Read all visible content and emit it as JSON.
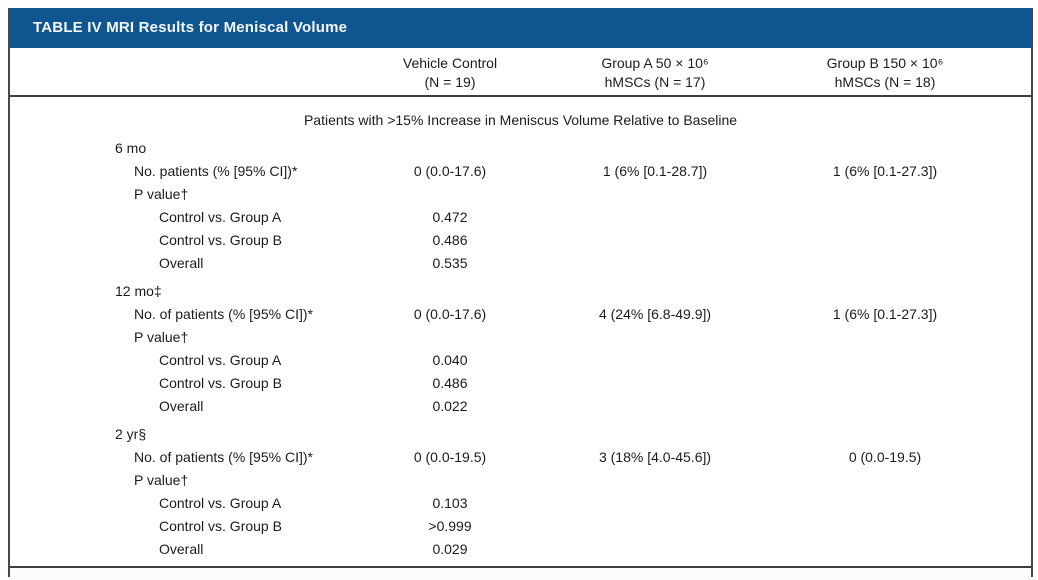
{
  "table": {
    "title": "TABLE IV MRI Results for Meniscal Volume",
    "columns": [
      {
        "line1": "Vehicle Control",
        "line2": "(N = 19)"
      },
      {
        "line1": "Group A 50 × 10⁶",
        "line2": "hMSCs (N = 17)"
      },
      {
        "line1": "Group B 150 × 10⁶",
        "line2": "hMSCs (N = 18)"
      }
    ],
    "section_heading": "Patients with >15% Increase in Meniscus Volume Relative to Baseline",
    "rows": [
      {
        "label": "6 mo",
        "indent": 0,
        "section": true,
        "values": [
          "",
          "",
          ""
        ]
      },
      {
        "label": "No. patients (% [95% CI])*",
        "indent": 1,
        "section": false,
        "values": [
          "0 (0.0-17.6)",
          "1 (6% [0.1-28.7])",
          "1 (6% [0.1-27.3])"
        ]
      },
      {
        "label": "P value†",
        "indent": 1,
        "section": false,
        "values": [
          "",
          "",
          ""
        ]
      },
      {
        "label": "Control vs. Group A",
        "indent": 2,
        "section": false,
        "values": [
          "0.472",
          "",
          ""
        ]
      },
      {
        "label": "Control vs. Group B",
        "indent": 2,
        "section": false,
        "values": [
          "0.486",
          "",
          ""
        ]
      },
      {
        "label": "Overall",
        "indent": 2,
        "section": false,
        "values": [
          "0.535",
          "",
          ""
        ]
      },
      {
        "label": "12 mo‡",
        "indent": 0,
        "section": true,
        "values": [
          "",
          "",
          ""
        ]
      },
      {
        "label": "No. of patients (% [95% CI])*",
        "indent": 1,
        "section": false,
        "values": [
          "0 (0.0-17.6)",
          "4 (24% [6.8-49.9])",
          "1 (6% [0.1-27.3])"
        ]
      },
      {
        "label": "P value†",
        "indent": 1,
        "section": false,
        "values": [
          "",
          "",
          ""
        ]
      },
      {
        "label": "Control vs. Group A",
        "indent": 2,
        "section": false,
        "values": [
          "0.040",
          "",
          ""
        ]
      },
      {
        "label": "Control vs. Group B",
        "indent": 2,
        "section": false,
        "values": [
          "0.486",
          "",
          ""
        ]
      },
      {
        "label": "Overall",
        "indent": 2,
        "section": false,
        "values": [
          "0.022",
          "",
          ""
        ]
      },
      {
        "label": "2 yr§",
        "indent": 0,
        "section": true,
        "values": [
          "",
          "",
          ""
        ]
      },
      {
        "label": "No. of patients (% [95% CI])*",
        "indent": 1,
        "section": false,
        "values": [
          "0 (0.0-19.5)",
          "3 (18% [4.0-45.6])",
          "0 (0.0-19.5)"
        ]
      },
      {
        "label": "P value†",
        "indent": 1,
        "section": false,
        "values": [
          "",
          "",
          ""
        ]
      },
      {
        "label": "Control vs. Group A",
        "indent": 2,
        "section": false,
        "values": [
          "0.103",
          "",
          ""
        ]
      },
      {
        "label": "Control vs. Group B",
        "indent": 2,
        "section": false,
        "values": [
          ">0.999",
          "",
          ""
        ]
      },
      {
        "label": "Overall",
        "indent": 2,
        "section": false,
        "values": [
          "0.029",
          "",
          ""
        ]
      }
    ],
    "colors": {
      "header_bar_blue": "#0f5590",
      "rule_dark": "#3e3e41",
      "text": "#1b1b1d"
    }
  }
}
